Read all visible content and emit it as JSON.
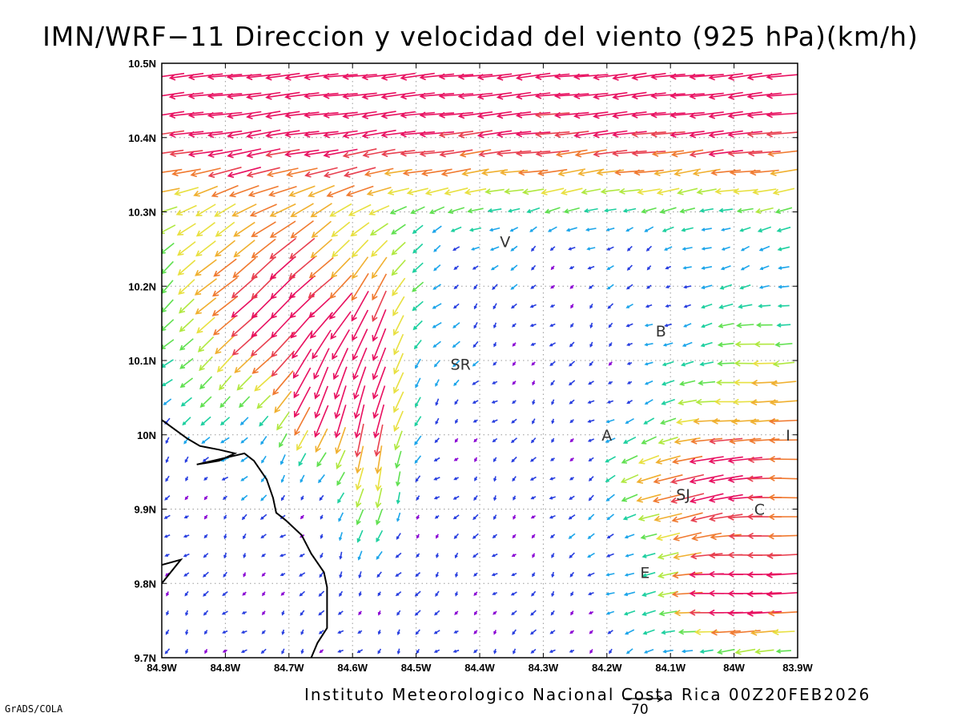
{
  "title": "IMN/WRF−11 Direccion y velocidad del viento (925 hPa)(km/h)",
  "footer": "Instituto Meteorologico Nacional Costa Rica 00Z20FEB2026",
  "software": "GrADS/COLA",
  "scale_arrow": {
    "value": "70"
  },
  "axes": {
    "x_ticks": [
      "84.9W",
      "84.8W",
      "84.7W",
      "84.6W",
      "84.5W",
      "84.4W",
      "84.3W",
      "84.2W",
      "84.1W",
      "84W",
      "83.9W"
    ],
    "y_ticks": [
      "9.7N",
      "9.8N",
      "9.9N",
      "10N",
      "10.1N",
      "10.2N",
      "10.3N",
      "10.4N",
      "10.5N"
    ],
    "lon_range": [
      -84.9,
      -83.9
    ],
    "lat_range": [
      9.7,
      10.5
    ],
    "grid": "dotted"
  },
  "places": [
    {
      "label": "V",
      "lon": -84.36,
      "lat": 10.26
    },
    {
      "label": "B",
      "lon": -84.115,
      "lat": 10.14
    },
    {
      "label": "SR",
      "lon": -84.43,
      "lat": 10.095
    },
    {
      "label": "A",
      "lon": -84.2,
      "lat": 10.0
    },
    {
      "label": "I",
      "lon": -83.915,
      "lat": 10.0
    },
    {
      "label": "SJ",
      "lon": -84.08,
      "lat": 9.92
    },
    {
      "label": "C",
      "lon": -83.96,
      "lat": 9.9
    },
    {
      "label": "E",
      "lon": -84.14,
      "lat": 9.815
    }
  ],
  "speed_colors": [
    "#8a00d4",
    "#2a40e0",
    "#1ea6ea",
    "#1fd0a0",
    "#60e050",
    "#b0e840",
    "#e8e040",
    "#f0b030",
    "#f07a30",
    "#e84050",
    "#e81060"
  ],
  "coastline": [
    [
      -84.9,
      10.02
    ],
    [
      -84.86,
      9.995
    ],
    [
      -84.84,
      9.985
    ],
    [
      -84.81,
      9.98
    ],
    [
      -84.785,
      9.975
    ],
    [
      -84.81,
      9.965
    ],
    [
      -84.845,
      9.96
    ],
    [
      -84.77,
      9.975
    ],
    [
      -84.755,
      9.965
    ],
    [
      -84.735,
      9.94
    ],
    [
      -84.725,
      9.915
    ],
    [
      -84.72,
      9.895
    ],
    [
      -84.705,
      9.885
    ],
    [
      -84.68,
      9.865
    ],
    [
      -84.665,
      9.84
    ],
    [
      -84.645,
      9.815
    ],
    [
      -84.64,
      9.795
    ],
    [
      -84.64,
      9.755
    ],
    [
      -84.64,
      9.74
    ],
    [
      -84.655,
      9.72
    ],
    [
      -84.665,
      9.7
    ]
  ],
  "island": [
    [
      -84.9,
      9.825
    ],
    [
      -84.87,
      9.832
    ],
    [
      -84.9,
      9.8
    ]
  ]
}
